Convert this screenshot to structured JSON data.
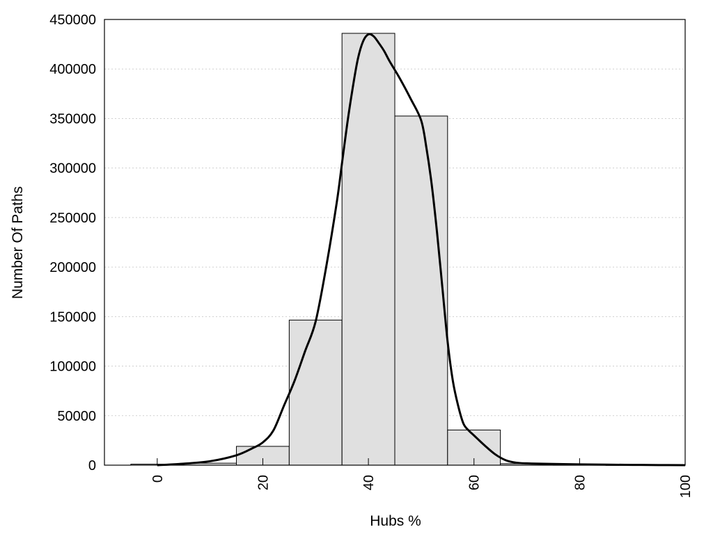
{
  "chart_data": {
    "type": "bar",
    "title": "",
    "xlabel": "Hubs %",
    "ylabel": "Number Of Paths",
    "xlim": [
      -10,
      100
    ],
    "ylim": [
      0,
      450000
    ],
    "grid": true,
    "bin_width": 10,
    "x": [
      0,
      10,
      20,
      30,
      40,
      50,
      60,
      70,
      80,
      90
    ],
    "values": [
      1000,
      2000,
      19000,
      146500,
      436000,
      352500,
      35500,
      1500,
      300,
      100
    ],
    "xticks": [
      0,
      20,
      40,
      60,
      80,
      100
    ],
    "yticks": [
      0,
      50000,
      100000,
      150000,
      200000,
      250000,
      300000,
      350000,
      400000,
      450000
    ],
    "density_curve": {
      "x": [
        0,
        5,
        10,
        15,
        18,
        20,
        22,
        24,
        26,
        28,
        30,
        32,
        34,
        35,
        36,
        37,
        38,
        39,
        40,
        41,
        42,
        43,
        44,
        46,
        48,
        50,
        51,
        52,
        53,
        54,
        55,
        56,
        57,
        58,
        59,
        60,
        62,
        64,
        66,
        68,
        70,
        75,
        80,
        85,
        90,
        95,
        100
      ],
      "y": [
        0,
        1500,
        4000,
        10000,
        17000,
        23000,
        35000,
        60000,
        85000,
        115000,
        145000,
        200000,
        265000,
        305000,
        345000,
        380000,
        410000,
        428000,
        435000,
        433000,
        426000,
        418000,
        408000,
        390000,
        370000,
        348000,
        320000,
        283000,
        235000,
        180000,
        125000,
        85000,
        60000,
        42000,
        35000,
        30000,
        20000,
        11000,
        5000,
        2500,
        1800,
        1200,
        800,
        500,
        300,
        100,
        0
      ]
    }
  }
}
